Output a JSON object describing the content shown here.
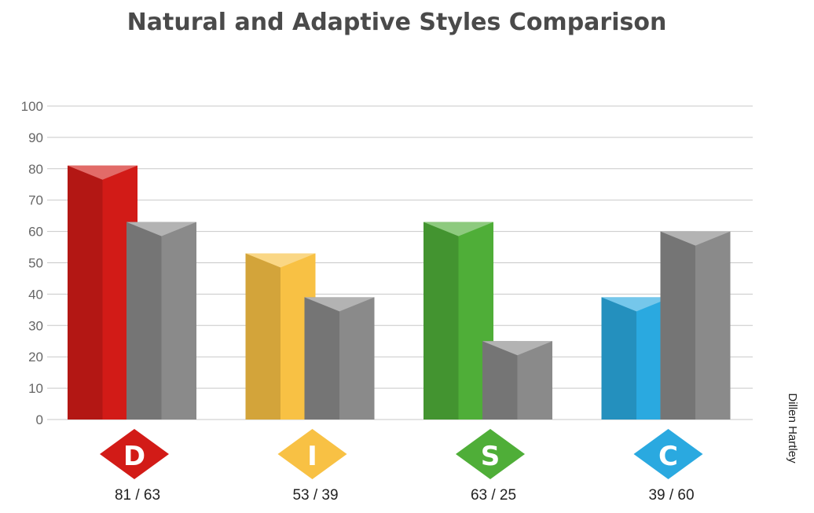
{
  "chart_data": {
    "type": "bar",
    "title": "Natural and Adaptive Styles Comparison",
    "categories": [
      "D",
      "I",
      "S",
      "C"
    ],
    "series": [
      {
        "values": [
          81,
          53,
          63,
          39
        ],
        "colors": [
          "#d21b17",
          "#f8c144",
          "#4fae38",
          "#2aa9e0"
        ]
      },
      {
        "values": [
          63,
          39,
          25,
          60
        ],
        "color": "#8a8a8a"
      }
    ],
    "pair_labels": [
      "81 / 63",
      "53 / 39",
      "63 / 25",
      "39 / 60"
    ],
    "ylim": [
      0,
      100
    ],
    "yticks": [
      0,
      10,
      20,
      30,
      40,
      50,
      60,
      70,
      80,
      90,
      100
    ],
    "grid": true,
    "xlabel": "",
    "ylabel": ""
  },
  "author": "Dillen Hartley"
}
